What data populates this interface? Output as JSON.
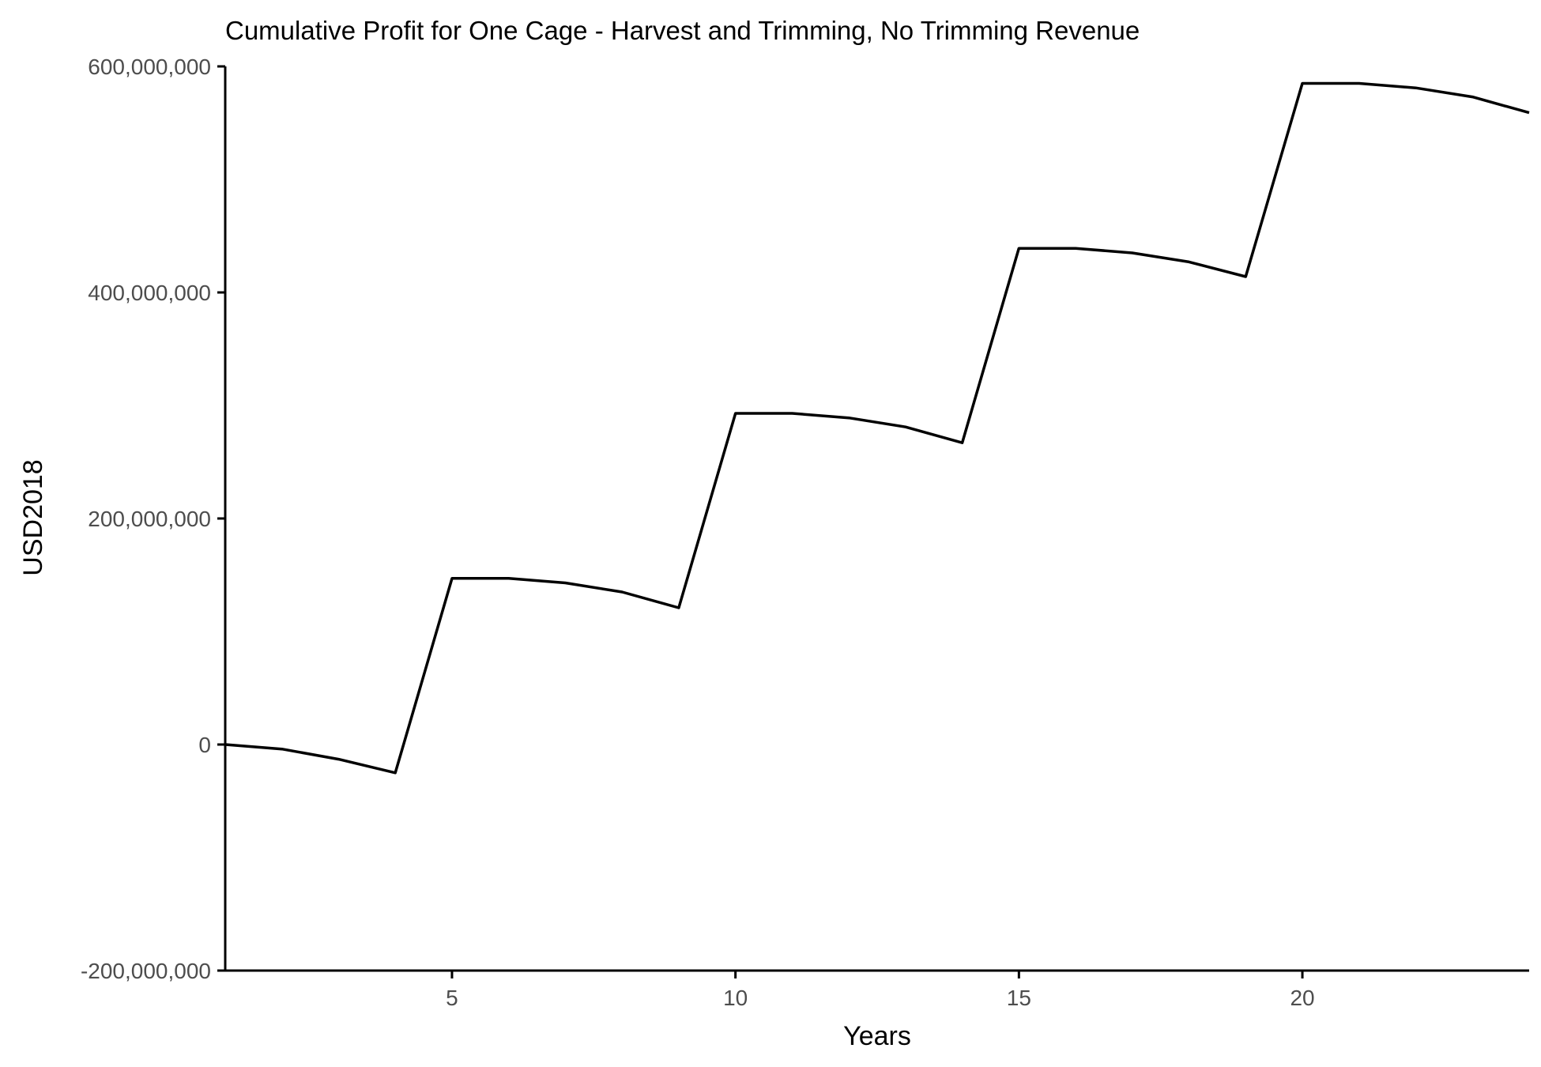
{
  "chart_data": {
    "type": "line",
    "title": "Cumulative Profit for One Cage - Harvest and Trimming, No Trimming Revenue",
    "xlabel": "Years",
    "ylabel": "USD2018",
    "xlim": [
      1,
      24
    ],
    "ylim": [
      -200000000,
      600000000
    ],
    "x_ticks": [
      5,
      10,
      15,
      20
    ],
    "x_tick_labels": [
      "5",
      "10",
      "15",
      "20"
    ],
    "y_ticks": [
      -200000000,
      0,
      200000000,
      400000000,
      600000000
    ],
    "y_tick_labels": [
      "-200,000,000",
      "0",
      "200,000,000",
      "400,000,000",
      "600,000,000"
    ],
    "grid": false,
    "legend": "none",
    "series": [
      {
        "color": "#000000",
        "x": [
          1,
          2,
          3,
          4,
          5,
          6,
          7,
          8,
          9,
          10,
          11,
          12,
          13,
          14,
          15,
          16,
          17,
          18,
          19,
          20,
          21,
          22,
          23,
          24
        ],
        "y": [
          0,
          -4000000,
          -13000000,
          -25000000,
          147000000,
          147000000,
          143000000,
          135000000,
          121000000,
          293000000,
          293000000,
          289000000,
          281000000,
          267000000,
          439000000,
          439000000,
          435000000,
          427000000,
          414000000,
          585000000,
          585000000,
          581000000,
          573000000,
          559000000
        ]
      }
    ]
  }
}
